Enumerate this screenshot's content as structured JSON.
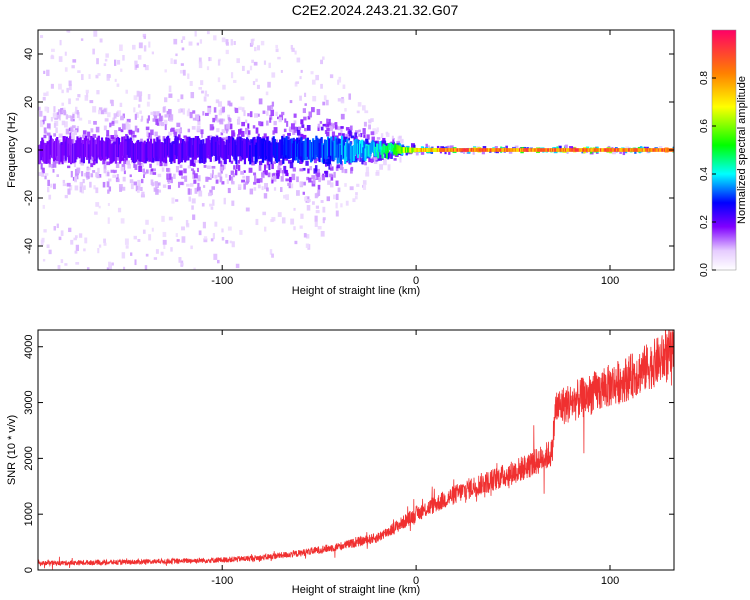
{
  "title": "C2E2.2024.243.21.32.G07",
  "chart_data": [
    {
      "type": "heatmap",
      "xlabel": "Height of straight line (km)",
      "ylabel": "Frequency (Hz)",
      "xlim": [
        -195,
        133
      ],
      "ylim": [
        -50,
        50
      ],
      "xticks": [
        -100,
        0,
        100
      ],
      "yticks": [
        -40,
        -20,
        0,
        20,
        40
      ],
      "colorbar": {
        "label": "Normalized spectral amplitude",
        "range": [
          0,
          1
        ],
        "ticks": [
          0.0,
          0.2,
          0.4,
          0.6,
          0.8
        ]
      },
      "description_points": [
        {
          "x": -195,
          "spread_hz": 50,
          "peak_amplitude": 0.2
        },
        {
          "x": -100,
          "spread_hz": 50,
          "peak_amplitude": 0.25
        },
        {
          "x": -50,
          "spread_hz": 40,
          "peak_amplitude": 0.35
        },
        {
          "x": -20,
          "spread_hz": 10,
          "peak_amplitude": 0.45
        },
        {
          "x": 0,
          "spread_hz": 2,
          "peak_amplitude": 0.8
        },
        {
          "x": 20,
          "spread_hz": 1,
          "peak_amplitude": 0.95
        },
        {
          "x": 133,
          "spread_hz": 1,
          "peak_amplitude": 0.95
        }
      ]
    },
    {
      "type": "line",
      "xlabel": "Height of straight line (km)",
      "ylabel": "SNR (10 * v/v)",
      "xlim": [
        -195,
        133
      ],
      "ylim": [
        0,
        4300
      ],
      "xticks": [
        -100,
        0,
        100
      ],
      "yticks": [
        0,
        1000,
        2000,
        3000,
        4000
      ],
      "color": "#f03030",
      "x": [
        -195,
        -150,
        -100,
        -80,
        -60,
        -40,
        -20,
        -10,
        0,
        10,
        20,
        30,
        40,
        50,
        60,
        70,
        72,
        80,
        90,
        100,
        110,
        120,
        133
      ],
      "y": [
        120,
        140,
        180,
        220,
        300,
        420,
        580,
        780,
        1000,
        1180,
        1350,
        1500,
        1620,
        1750,
        1900,
        2100,
        2900,
        3000,
        3150,
        3300,
        3450,
        3650,
        3900
      ]
    }
  ]
}
